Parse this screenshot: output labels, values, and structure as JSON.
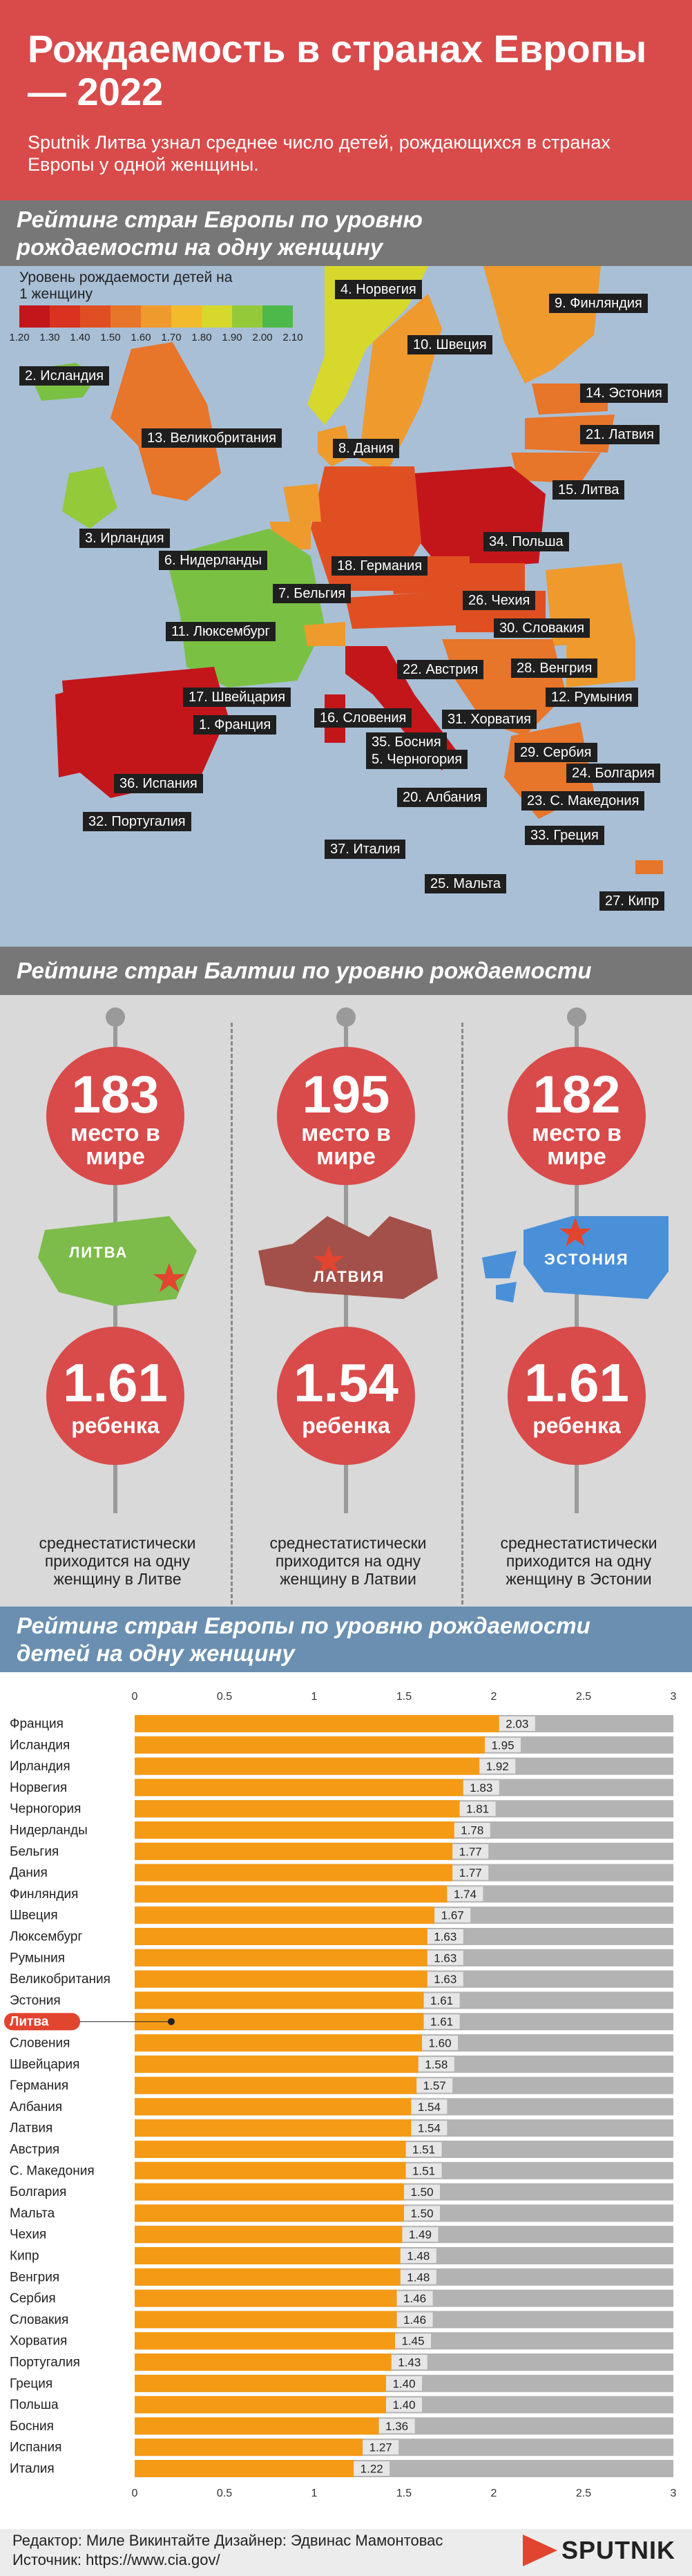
{
  "header": {
    "title": "Рождаемость в странах Европы — 2022",
    "subtitle": "Sputnik Литва узнал среднее число детей, рождающихся в странах Европы у одной женщины."
  },
  "map_section": {
    "title_l1": "Рейтинг стран Европы по уровню",
    "title_l2": "рождаемости на одну женщину",
    "legend_title": "Уровень рождаемости детей на 1 женщину",
    "legend_ticks": [
      "1.20",
      "1.30",
      "1.40",
      "1.50",
      "1.60",
      "1.70",
      "1.80",
      "1.90",
      "2.00",
      "2.10"
    ],
    "legend_colors": [
      "#c2161b",
      "#d9321e",
      "#e04f22",
      "#e7752a",
      "#ee9a2d",
      "#f1bb2b",
      "#d6d82c",
      "#94c93a",
      "#4db94a"
    ],
    "labels": [
      "4. Норвегия",
      "9. Финляндия",
      "10. Швеция",
      "2. Исландия",
      "14. Эстония",
      "21. Латвия",
      "13. Великобритания",
      "8. Дания",
      "15. Литва",
      "3. Ирландия",
      "6. Нидерланды",
      "34. Польша",
      "18. Германия",
      "7. Бельгия",
      "26. Чехия",
      "30. Словакия",
      "11. Люксембург",
      "22. Австрия",
      "28. Венгрия",
      "12. Румыния",
      "17. Швейцария",
      "1. Франция",
      "16. Словения",
      "31. Хорватия",
      "35. Босния",
      "5. Черногория",
      "29. Сербия",
      "24. Болгария",
      "36. Испания",
      "20. Албания",
      "23. С. Македония",
      "32. Португалия",
      "33. Греция",
      "37. Италия",
      "25. Мальта",
      "27. Кипр"
    ]
  },
  "baltic_section": {
    "title": "Рейтинг стран Балтии по уровню рождаемости",
    "columns": [
      {
        "rank": "183",
        "rank_label": "место в мире",
        "country": "ЛИТВА",
        "rate": "1.61",
        "rate_label": "ребенка",
        "caption": "среднестатистически приходится на одну женщину в Литве"
      },
      {
        "rank": "195",
        "rank_label": "место в мире",
        "country": "ЛАТВИЯ",
        "rate": "1.54",
        "rate_label": "ребенка",
        "caption": "среднестатистически приходится на одну женщину в Латвии"
      },
      {
        "rank": "182",
        "rank_label": "место в мире",
        "country": "ЭСТОНИЯ",
        "rate": "1.61",
        "rate_label": "ребенка",
        "caption": "среднестатистически приходится на одну женщину в Эстонии"
      }
    ],
    "colors": {
      "lithuania": "#7dbb4a",
      "latvia": "#a3504a",
      "estonia": "#4a90d9",
      "star": "#e1442f"
    }
  },
  "chart_section": {
    "title_l1": "Рейтинг стран Европы по уровню рождаемости",
    "title_l2": "детей на одну женщину"
  },
  "chart_data": {
    "type": "bar",
    "orientation": "horizontal",
    "xlim": [
      0,
      3
    ],
    "x_ticks": [
      "0",
      "0.5",
      "1",
      "1.5",
      "2",
      "2.5",
      "3"
    ],
    "highlight": "Литва",
    "bar_color": "#f59a14",
    "track_color": "#b3b3b3",
    "highlight_color": "#e1442f",
    "categories": [
      "Франция",
      "Исландия",
      "Ирландия",
      "Норвегия",
      "Черногория",
      "Нидерланды",
      "Бельгия",
      "Дания",
      "Финляндия",
      "Швеция",
      "Люксембург",
      "Румыния",
      "Великобритания",
      "Эстония",
      "Литва",
      "Словения",
      "Швейцария",
      "Германия",
      "Албания",
      "Латвия",
      "Австрия",
      "С. Македония",
      "Болгария",
      "Мальта",
      "Чехия",
      "Кипр",
      "Венгрия",
      "Сербия",
      "Словакия",
      "Хорватия",
      "Португалия",
      "Греция",
      "Польша",
      "Босния",
      "Испания",
      "Италия"
    ],
    "values": [
      2.03,
      1.95,
      1.92,
      1.83,
      1.81,
      1.78,
      1.77,
      1.77,
      1.74,
      1.67,
      1.63,
      1.63,
      1.63,
      1.61,
      1.61,
      1.6,
      1.58,
      1.57,
      1.54,
      1.54,
      1.51,
      1.51,
      1.5,
      1.5,
      1.49,
      1.48,
      1.48,
      1.46,
      1.46,
      1.45,
      1.43,
      1.4,
      1.4,
      1.36,
      1.27,
      1.22
    ]
  },
  "footer": {
    "line1": "Редактор: Миле Викинтайте  Дизайнер: Эдвинас Мамонтовас",
    "line2": "Источник: https://www.cia.gov/",
    "logo": "SPUTNIK"
  }
}
